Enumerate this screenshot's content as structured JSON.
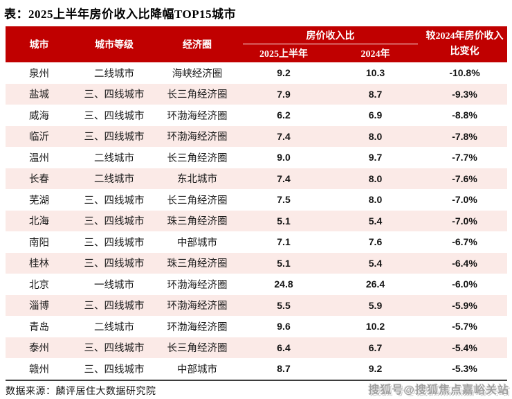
{
  "title": "表：2025上半年房价收入比降幅TOP15城市",
  "colors": {
    "header_bg": "#C00000",
    "header_text": "#FFFFFF",
    "row_alt_bg": "#FBEAE7",
    "body_text": "#1A1A1A",
    "table_bottom_border": "#3D3D3D",
    "watermark_text": "#A0A0A0"
  },
  "table": {
    "columns": {
      "city": "城市",
      "tier": "城市等级",
      "region": "经济圈",
      "ratio_group": "房价收入比",
      "h2025": "2025上半年",
      "y2024": "2024年",
      "change": "较2024年房价收入比变化"
    },
    "rows": [
      {
        "city": "泉州",
        "tier": "二线城市",
        "region": "海峡经济圈",
        "h2025": "9.2",
        "y2024": "10.3",
        "change": "-10.8%"
      },
      {
        "city": "盐城",
        "tier": "三、四线城市",
        "region": "长三角经济圈",
        "h2025": "7.9",
        "y2024": "8.7",
        "change": "-9.3%"
      },
      {
        "city": "威海",
        "tier": "三、四线城市",
        "region": "环渤海经济圈",
        "h2025": "6.2",
        "y2024": "6.9",
        "change": "-8.8%"
      },
      {
        "city": "临沂",
        "tier": "三、四线城市",
        "region": "环渤海经济圈",
        "h2025": "7.4",
        "y2024": "8.0",
        "change": "-7.8%"
      },
      {
        "city": "温州",
        "tier": "二线城市",
        "region": "长三角经济圈",
        "h2025": "9.0",
        "y2024": "9.7",
        "change": "-7.7%"
      },
      {
        "city": "长春",
        "tier": "二线城市",
        "region": "东北城市",
        "h2025": "7.4",
        "y2024": "8.0",
        "change": "-7.6%"
      },
      {
        "city": "芜湖",
        "tier": "三、四线城市",
        "region": "长三角经济圈",
        "h2025": "7.5",
        "y2024": "8.0",
        "change": "-7.0%"
      },
      {
        "city": "北海",
        "tier": "三、四线城市",
        "region": "珠三角经济圈",
        "h2025": "5.1",
        "y2024": "5.4",
        "change": "-7.0%"
      },
      {
        "city": "南阳",
        "tier": "三、四线城市",
        "region": "中部城市",
        "h2025": "7.1",
        "y2024": "7.6",
        "change": "-6.7%"
      },
      {
        "city": "桂林",
        "tier": "三、四线城市",
        "region": "珠三角经济圈",
        "h2025": "5.1",
        "y2024": "5.4",
        "change": "-6.4%"
      },
      {
        "city": "北京",
        "tier": "一线城市",
        "region": "环渤海经济圈",
        "h2025": "24.8",
        "y2024": "26.4",
        "change": "-6.0%"
      },
      {
        "city": "淄博",
        "tier": "三、四线城市",
        "region": "环渤海经济圈",
        "h2025": "5.5",
        "y2024": "5.9",
        "change": "-5.9%"
      },
      {
        "city": "青岛",
        "tier": "二线城市",
        "region": "环渤海经济圈",
        "h2025": "9.6",
        "y2024": "10.2",
        "change": "-5.7%"
      },
      {
        "city": "泰州",
        "tier": "三、四线城市",
        "region": "长三角经济圈",
        "h2025": "6.4",
        "y2024": "6.7",
        "change": "-5.4%"
      },
      {
        "city": "赣州",
        "tier": "三、四线城市",
        "region": "中部城市",
        "h2025": "8.7",
        "y2024": "9.2",
        "change": "-5.3%"
      }
    ]
  },
  "footer": {
    "source": "数据来源：麟评居住大数据研究院"
  },
  "watermark": "搜狐号@搜狐焦点嘉峪关站",
  "chart_data": {
    "type": "table",
    "title": "2025上半年房价收入比降幅TOP15城市",
    "columns": [
      "城市",
      "城市等级",
      "经济圈",
      "房价收入比 2025上半年",
      "房价收入比 2024年",
      "较2024年房价收入比变化"
    ],
    "cities": [
      "泉州",
      "盐城",
      "威海",
      "临沂",
      "温州",
      "长春",
      "芜湖",
      "北海",
      "南阳",
      "桂林",
      "北京",
      "淄博",
      "青岛",
      "泰州",
      "赣州"
    ],
    "tiers": [
      "二线城市",
      "三、四线城市",
      "三、四线城市",
      "三、四线城市",
      "二线城市",
      "二线城市",
      "三、四线城市",
      "三、四线城市",
      "三、四线城市",
      "三、四线城市",
      "一线城市",
      "三、四线城市",
      "二线城市",
      "三、四线城市",
      "三、四线城市"
    ],
    "regions": [
      "海峡经济圈",
      "长三角经济圈",
      "环渤海经济圈",
      "环渤海经济圈",
      "长三角经济圈",
      "东北城市",
      "长三角经济圈",
      "珠三角经济圈",
      "中部城市",
      "珠三角经济圈",
      "环渤海经济圈",
      "环渤海经济圈",
      "环渤海经济圈",
      "长三角经济圈",
      "中部城市"
    ],
    "series": [
      {
        "name": "2025上半年房价收入比",
        "values": [
          9.2,
          7.9,
          6.2,
          7.4,
          9.0,
          7.4,
          7.5,
          5.1,
          7.1,
          5.1,
          24.8,
          5.5,
          9.6,
          6.4,
          8.7
        ]
      },
      {
        "name": "2024年房价收入比",
        "values": [
          10.3,
          8.7,
          6.9,
          8.0,
          9.7,
          8.0,
          8.0,
          5.4,
          7.6,
          5.4,
          26.4,
          5.9,
          10.2,
          6.7,
          9.2
        ]
      },
      {
        "name": "较2024年房价收入比变化(%)",
        "values": [
          -10.8,
          -9.3,
          -8.8,
          -7.8,
          -7.7,
          -7.6,
          -7.0,
          -7.0,
          -6.7,
          -6.4,
          -6.0,
          -5.9,
          -5.7,
          -5.4,
          -5.3
        ]
      }
    ],
    "source": "麟评居住大数据研究院"
  }
}
